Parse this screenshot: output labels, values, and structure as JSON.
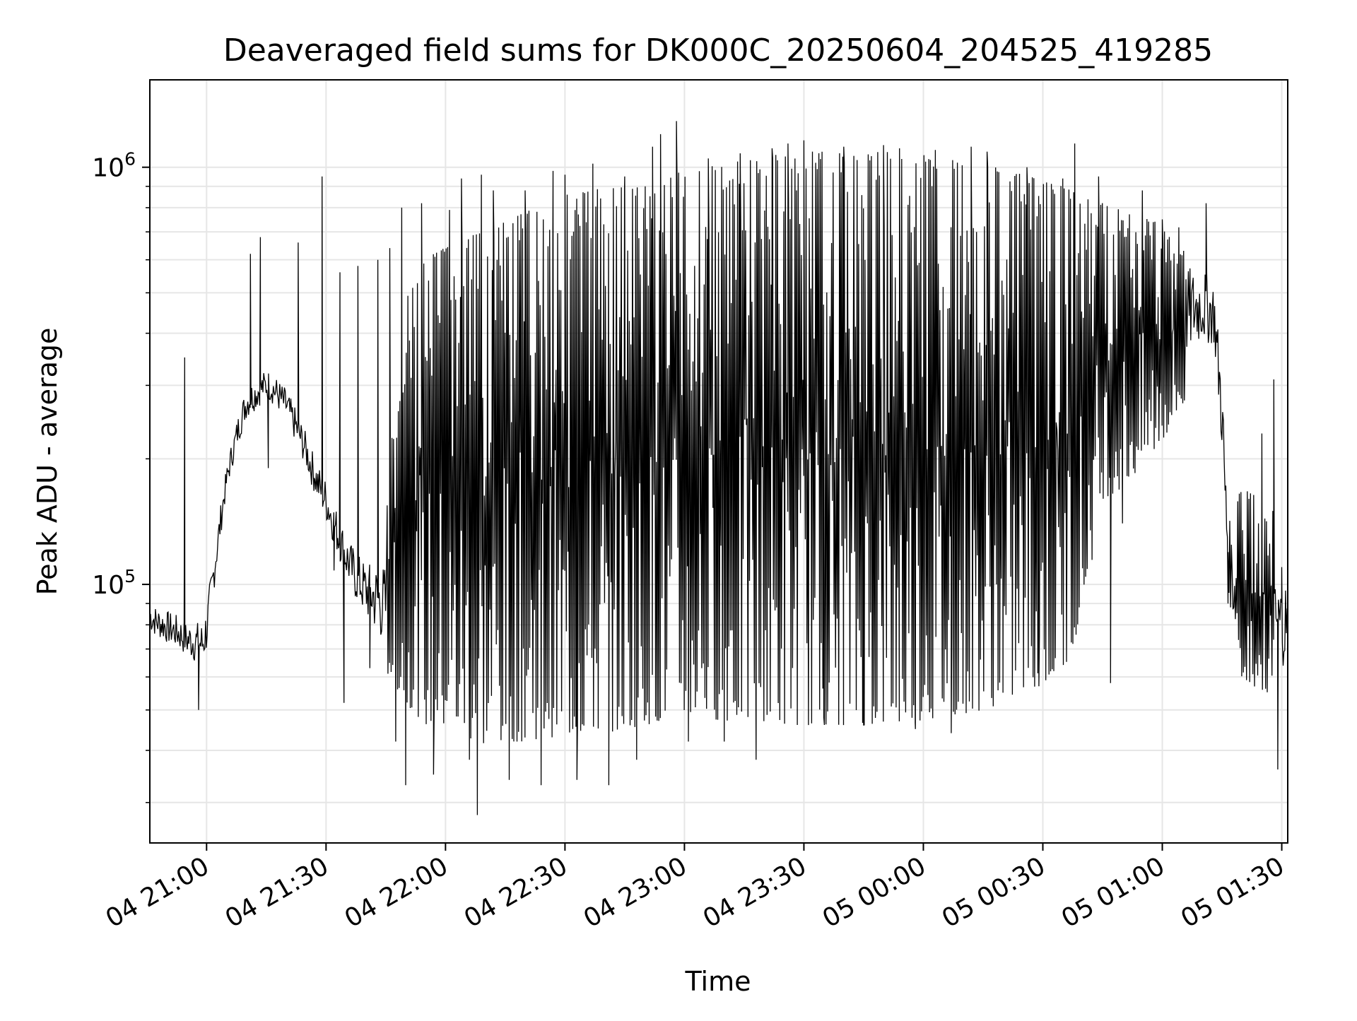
{
  "chart_data": {
    "type": "line",
    "title": "Deaveraged field sums for DK000C_20250604_204525_419285",
    "xlabel": "Time",
    "ylabel": "Peak ADU - average",
    "x_scale": "time",
    "y_scale": "log",
    "grid": true,
    "legend": "none",
    "line_color": "#000000",
    "xlim": [
      "2025-06-04 20:45:45",
      "2025-06-05 01:31:30"
    ],
    "ylim": [
      24000,
      1620000
    ],
    "x_ticks": [
      {
        "t": "2025-06-04 21:00",
        "label": "04 21:00"
      },
      {
        "t": "2025-06-04 21:30",
        "label": "04 21:30"
      },
      {
        "t": "2025-06-04 22:00",
        "label": "04 22:00"
      },
      {
        "t": "2025-06-04 22:30",
        "label": "04 22:30"
      },
      {
        "t": "2025-06-04 23:00",
        "label": "04 23:00"
      },
      {
        "t": "2025-06-04 23:30",
        "label": "04 23:30"
      },
      {
        "t": "2025-06-05 00:00",
        "label": "05 00:00"
      },
      {
        "t": "2025-06-05 00:30",
        "label": "05 00:30"
      },
      {
        "t": "2025-06-05 01:00",
        "label": "05 01:00"
      },
      {
        "t": "2025-06-05 01:30",
        "label": "05 01:30"
      }
    ],
    "y_major_ticks": [
      {
        "value": 100000,
        "base": "10",
        "exp": "5"
      },
      {
        "value": 1000000,
        "base": "10",
        "exp": "6"
      }
    ],
    "y_minor_ticks": [
      30000,
      40000,
      50000,
      60000,
      70000,
      80000,
      90000,
      200000,
      300000,
      400000,
      500000,
      600000,
      700000,
      800000,
      900000
    ],
    "series": [
      {
        "points": [
          [
            "2025-06-04 20:45:45",
            85000
          ],
          [
            "2025-06-04 20:47:00",
            82000
          ],
          [
            "2025-06-04 20:49:00",
            80000
          ],
          [
            "2025-06-04 20:51:00",
            78000
          ],
          [
            "2025-06-04 20:53:00",
            76000
          ],
          [
            "2025-06-04 20:55:00",
            72000
          ],
          [
            "2025-06-04 20:57:00",
            70000
          ],
          [
            "2025-06-04 20:59:00",
            68000
          ],
          [
            "2025-06-04 21:01:00",
            95000
          ],
          [
            "2025-06-04 21:02:00",
            115000
          ],
          [
            "2025-06-04 21:04:00",
            160000
          ],
          [
            "2025-06-04 21:06:00",
            205000
          ],
          [
            "2025-06-04 21:08:00",
            245000
          ],
          [
            "2025-06-04 21:10:00",
            270000
          ],
          [
            "2025-06-04 21:12:00",
            290000
          ],
          [
            "2025-06-04 21:14:00",
            310000
          ],
          [
            "2025-06-04 21:16:00",
            320000
          ],
          [
            "2025-06-04 21:18:00",
            300000
          ],
          [
            "2025-06-04 21:20:00",
            280000
          ],
          [
            "2025-06-04 21:22:00",
            250000
          ],
          [
            "2025-06-04 21:24:00",
            220000
          ],
          [
            "2025-06-04 21:26:00",
            190000
          ],
          [
            "2025-06-04 21:28:00",
            170000
          ],
          [
            "2025-06-04 21:30:00",
            160000
          ],
          [
            "2025-06-04 21:32:00",
            140000
          ],
          [
            "2025-06-04 21:34:00",
            125000
          ],
          [
            "2025-06-04 21:36:00",
            110000
          ],
          [
            "2025-06-04 21:38:00",
            100000
          ],
          [
            "2025-06-04 21:40:00",
            95000
          ],
          [
            "2025-06-04 21:42:00",
            88000
          ],
          [
            "2025-06-04 21:44:00",
            82000
          ],
          [
            "2025-06-04 21:46:00",
            75000
          ],
          [
            "2025-06-04 21:48:00",
            68000
          ],
          [
            "2025-06-04 21:50:00",
            62000
          ],
          [
            "2025-06-04 21:52:00",
            58000
          ],
          [
            "2025-06-04 21:54:00",
            56000
          ],
          [
            "2025-06-04 21:56:00",
            55000
          ],
          [
            "2025-06-04 21:58:00",
            54000
          ],
          [
            "2025-06-04 22:00:00",
            53000
          ],
          [
            "2025-06-04 22:05:00",
            52000
          ],
          [
            "2025-06-04 22:10:00",
            51000
          ],
          [
            "2025-06-04 22:15:00",
            52000
          ],
          [
            "2025-06-04 22:20:00",
            53000
          ],
          [
            "2025-06-04 22:25:00",
            53000
          ],
          [
            "2025-06-04 22:30:00",
            54000
          ],
          [
            "2025-06-04 22:35:00",
            54000
          ],
          [
            "2025-06-04 22:40:00",
            54000
          ],
          [
            "2025-06-04 22:45:00",
            55000
          ],
          [
            "2025-06-04 22:50:00",
            56000
          ],
          [
            "2025-06-04 22:55:00",
            58000
          ],
          [
            "2025-06-04 23:00:00",
            60000
          ],
          [
            "2025-06-04 23:10:00",
            60000
          ],
          [
            "2025-06-04 23:20:00",
            59000
          ],
          [
            "2025-06-04 23:30:00",
            58000
          ],
          [
            "2025-06-04 23:40:00",
            57000
          ],
          [
            "2025-06-04 23:50:00",
            57000
          ],
          [
            "2025-06-05 00:00:00",
            58000
          ],
          [
            "2025-06-05 00:10:00",
            58000
          ],
          [
            "2025-06-05 00:20:00",
            60000
          ],
          [
            "2025-06-05 00:30:00",
            62000
          ],
          [
            "2025-06-05 00:35:00",
            66000
          ],
          [
            "2025-06-05 00:40:00",
            300000
          ],
          [
            "2025-06-05 00:45:00",
            340000
          ],
          [
            "2025-06-05 00:50:00",
            370000
          ],
          [
            "2025-06-05 00:55:00",
            390000
          ],
          [
            "2025-06-05 01:00:00",
            410000
          ],
          [
            "2025-06-05 01:05:00",
            450000
          ],
          [
            "2025-06-05 01:10:00",
            480000
          ],
          [
            "2025-06-05 01:13:00",
            420000
          ],
          [
            "2025-06-05 01:15:00",
            250000
          ],
          [
            "2025-06-05 01:16:00",
            120000
          ],
          [
            "2025-06-05 01:18:00",
            90000
          ],
          [
            "2025-06-05 01:20:00",
            75000
          ],
          [
            "2025-06-05 01:24:00",
            70000
          ],
          [
            "2025-06-05 01:28:00",
            72000
          ],
          [
            "2025-06-05 01:31:30",
            75000
          ]
        ],
        "envelope": [
          [
            "2025-06-04 20:45:45",
            98000,
            70000
          ],
          [
            "2025-06-04 20:50:00",
            95000,
            66000
          ],
          [
            "2025-06-04 20:55:00",
            92000,
            62000
          ],
          [
            "2025-06-04 21:00:00",
            100000,
            58000
          ],
          [
            "2025-06-04 21:05:00",
            200000,
            150000
          ],
          [
            "2025-06-04 21:10:00",
            330000,
            230000
          ],
          [
            "2025-06-04 21:15:00",
            340000,
            240000
          ],
          [
            "2025-06-04 21:20:00",
            310000,
            215000
          ],
          [
            "2025-06-04 21:25:00",
            260000,
            175000
          ],
          [
            "2025-06-04 21:30:00",
            200000,
            125000
          ],
          [
            "2025-06-04 21:35:00",
            150000,
            90000
          ],
          [
            "2025-06-04 21:40:00",
            135000,
            72000
          ],
          [
            "2025-06-04 21:45:00",
            160000,
            62000
          ],
          [
            "2025-06-04 21:50:00",
            480000,
            52000
          ],
          [
            "2025-06-04 21:55:00",
            600000,
            46000
          ],
          [
            "2025-06-04 22:00:00",
            650000,
            45000
          ],
          [
            "2025-06-04 22:05:00",
            680000,
            43000
          ],
          [
            "2025-06-04 22:10:00",
            700000,
            41000
          ],
          [
            "2025-06-04 22:15:00",
            740000,
            42000
          ],
          [
            "2025-06-04 22:20:00",
            780000,
            42000
          ],
          [
            "2025-06-04 22:25:00",
            820000,
            43000
          ],
          [
            "2025-06-04 22:30:00",
            860000,
            43000
          ],
          [
            "2025-06-04 22:35:00",
            880000,
            44000
          ],
          [
            "2025-06-04 22:40:00",
            900000,
            44000
          ],
          [
            "2025-06-04 22:45:00",
            910000,
            45000
          ],
          [
            "2025-06-04 22:50:00",
            920000,
            46000
          ],
          [
            "2025-06-04 22:55:00",
            950000,
            47000
          ],
          [
            "2025-06-04 23:00:00",
            980000,
            48000
          ],
          [
            "2025-06-04 23:05:00",
            1000000,
            48000
          ],
          [
            "2025-06-04 23:10:00",
            1020000,
            47000
          ],
          [
            "2025-06-04 23:15:00",
            1040000,
            47000
          ],
          [
            "2025-06-04 23:20:00",
            1060000,
            47000
          ],
          [
            "2025-06-04 23:25:00",
            1080000,
            46000
          ],
          [
            "2025-06-04 23:30:00",
            1090000,
            46000
          ],
          [
            "2025-06-04 23:35:00",
            1090000,
            46000
          ],
          [
            "2025-06-04 23:40:00",
            1080000,
            46000
          ],
          [
            "2025-06-04 23:45:00",
            1080000,
            46000
          ],
          [
            "2025-06-04 23:50:00",
            1090000,
            46000
          ],
          [
            "2025-06-04 23:55:00",
            1080000,
            46000
          ],
          [
            "2025-06-05 00:00:00",
            1070000,
            47000
          ],
          [
            "2025-06-05 00:05:00",
            1060000,
            48000
          ],
          [
            "2025-06-05 00:10:00",
            1040000,
            49000
          ],
          [
            "2025-06-05 00:15:00",
            1020000,
            50000
          ],
          [
            "2025-06-05 00:20:00",
            990000,
            52000
          ],
          [
            "2025-06-05 00:25:00",
            960000,
            55000
          ],
          [
            "2025-06-05 00:30:00",
            930000,
            58000
          ],
          [
            "2025-06-05 00:35:00",
            900000,
            60000
          ],
          [
            "2025-06-05 00:40:00",
            850000,
            85000
          ],
          [
            "2025-06-05 00:45:00",
            820000,
            160000
          ],
          [
            "2025-06-05 00:50:00",
            790000,
            170000
          ],
          [
            "2025-06-05 00:55:00",
            760000,
            190000
          ],
          [
            "2025-06-05 01:00:00",
            740000,
            220000
          ],
          [
            "2025-06-05 01:05:00",
            720000,
            260000
          ],
          [
            "2025-06-05 01:10:00",
            710000,
            300000
          ],
          [
            "2025-06-05 01:13:00",
            680000,
            330000
          ],
          [
            "2025-06-05 01:15:00",
            420000,
            170000
          ],
          [
            "2025-06-05 01:17:00",
            190000,
            75000
          ],
          [
            "2025-06-05 01:20:00",
            170000,
            60000
          ],
          [
            "2025-06-05 01:25:00",
            160000,
            55000
          ],
          [
            "2025-06-05 01:31:30",
            140000,
            55000
          ]
        ],
        "spikes": [
          [
            "2025-06-04 20:54:30",
            350000
          ],
          [
            "2025-06-04 20:58:00",
            50000
          ],
          [
            "2025-06-04 21:11:00",
            620000
          ],
          [
            "2025-06-04 21:13:30",
            680000
          ],
          [
            "2025-06-04 21:15:30",
            190000
          ],
          [
            "2025-06-04 21:23:00",
            660000
          ],
          [
            "2025-06-04 21:27:00",
            180000
          ],
          [
            "2025-06-04 21:29:00",
            950000
          ],
          [
            "2025-06-04 21:32:00",
            108000
          ],
          [
            "2025-06-04 21:33:30",
            560000
          ],
          [
            "2025-06-04 21:34:30",
            52000
          ],
          [
            "2025-06-04 21:38:00",
            580000
          ],
          [
            "2025-06-04 21:41:00",
            63000
          ],
          [
            "2025-06-04 21:43:00",
            600000
          ],
          [
            "2025-06-04 21:46:00",
            640000
          ],
          [
            "2025-06-04 21:47:30",
            42000
          ],
          [
            "2025-06-04 21:49:00",
            800000
          ],
          [
            "2025-06-04 21:50:00",
            33000
          ],
          [
            "2025-06-04 21:54:00",
            820000
          ],
          [
            "2025-06-04 21:57:00",
            35000
          ],
          [
            "2025-06-04 22:01:00",
            790000
          ],
          [
            "2025-06-04 22:04:00",
            940000
          ],
          [
            "2025-06-04 22:06:00",
            38000
          ],
          [
            "2025-06-04 22:08:00",
            28000
          ],
          [
            "2025-06-04 22:09:00",
            960000
          ],
          [
            "2025-06-04 22:12:00",
            880000
          ],
          [
            "2025-06-04 22:16:00",
            34000
          ],
          [
            "2025-06-04 22:20:00",
            880000
          ],
          [
            "2025-06-04 22:24:00",
            33000
          ],
          [
            "2025-06-04 22:27:00",
            980000
          ],
          [
            "2025-06-04 22:30:00",
            960000
          ],
          [
            "2025-06-04 22:33:00",
            34000
          ],
          [
            "2025-06-04 22:37:00",
            1020000
          ],
          [
            "2025-06-04 22:41:00",
            33000
          ],
          [
            "2025-06-04 22:45:00",
            950000
          ],
          [
            "2025-06-04 22:48:00",
            38000
          ],
          [
            "2025-06-04 22:52:00",
            1120000
          ],
          [
            "2025-06-04 22:54:00",
            1200000
          ],
          [
            "2025-06-04 22:58:00",
            1290000
          ],
          [
            "2025-06-04 23:01:00",
            42000
          ],
          [
            "2025-06-04 23:06:00",
            1050000
          ],
          [
            "2025-06-04 23:10:00",
            42000
          ],
          [
            "2025-06-04 23:14:00",
            1080000
          ],
          [
            "2025-06-04 23:18:00",
            38000
          ],
          [
            "2025-06-04 23:22:00",
            1110000
          ],
          [
            "2025-06-04 23:26:00",
            1140000
          ],
          [
            "2025-06-04 23:30:00",
            1160000
          ],
          [
            "2025-06-04 23:35:00",
            48000
          ],
          [
            "2025-06-04 23:40:00",
            1120000
          ],
          [
            "2025-06-04 23:45:00",
            46000
          ],
          [
            "2025-06-04 23:50:00",
            1130000
          ],
          [
            "2025-06-04 23:54:00",
            1110000
          ],
          [
            "2025-06-04 23:58:00",
            45000
          ],
          [
            "2025-06-05 00:03:00",
            1100000
          ],
          [
            "2025-06-05 00:07:00",
            44000
          ],
          [
            "2025-06-05 00:12:00",
            1120000
          ],
          [
            "2025-06-05 00:16:00",
            1090000
          ],
          [
            "2025-06-05 00:20:00",
            55000
          ],
          [
            "2025-06-05 00:26:00",
            1000000
          ],
          [
            "2025-06-05 00:29:00",
            57000
          ],
          [
            "2025-06-05 00:35:00",
            940000
          ],
          [
            "2025-06-05 00:38:00",
            1140000
          ],
          [
            "2025-06-05 00:41:00",
            150000
          ],
          [
            "2025-06-05 00:44:00",
            950000
          ],
          [
            "2025-06-05 00:47:00",
            58000
          ],
          [
            "2025-06-05 00:50:00",
            140000
          ],
          [
            "2025-06-05 00:55:00",
            880000
          ],
          [
            "2025-06-05 01:00:00",
            750000
          ],
          [
            "2025-06-05 01:11:00",
            820000
          ],
          [
            "2025-06-05 01:16:30",
            90000
          ],
          [
            "2025-06-05 01:25:00",
            230000
          ],
          [
            "2025-06-05 01:28:00",
            310000
          ],
          [
            "2025-06-05 01:29:00",
            36000
          ],
          [
            "2025-06-05 01:30:00",
            110000
          ]
        ]
      }
    ]
  }
}
